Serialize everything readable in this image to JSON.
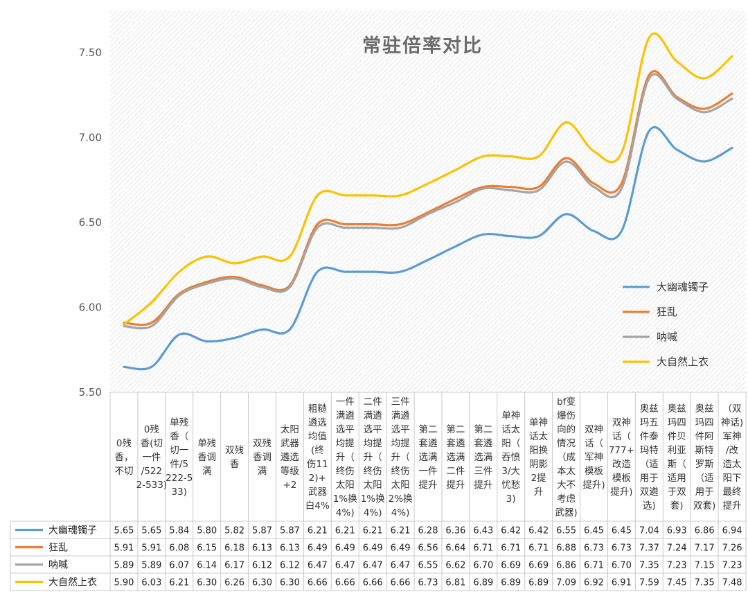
{
  "chart_data": {
    "type": "line",
    "title": "常驻倍率对比",
    "ylim": [
      5.5,
      7.75
    ],
    "yticks": [
      "5.50",
      "6.00",
      "6.50",
      "7.00",
      "7.50"
    ],
    "legend_position": "right",
    "categories": [
      "0残香，不切",
      "0残香(切一件/5222-533)",
      "单残香（切一件/5222-533)",
      "单残香调满",
      "双残香",
      "双残香调满",
      "太阳武器遴选等级+2",
      "粗糙遴选均值(终伤11 2)+武器白4%",
      "一件满遴选平均提升（终伤太阳1%换4%）",
      "二件满遴选平均提升（终伤太阳1%换4%）",
      "三件满遴选平均提升（终伤太阳2%换4%）",
      "第二套遴选满一件提升",
      "第二套遴选满二件提升",
      "第二套遴选满三件提升",
      "单神话太阳（吞愤3/大忧愁3）",
      "单神话太阳换阴影2提升",
      "bf变爆伤向的情况（成本太大不考虑武器）",
      "双神话（军神模板提升）",
      "双神话（777+改造模板提升）",
      "奥兹玛五件泰玛特（适用于双遴选）",
      "奥兹玛四件贝利亚斯（适用于双套）",
      "奥兹玛四件阿斯特罗斯（适用于双套）",
      "（双神话）军神/改造太阳下最终提升"
    ],
    "category_lines": [
      [
        "0残",
        "香，",
        "不切"
      ],
      [
        "0残",
        "香(切",
        "一件",
        "/522",
        "2-533)"
      ],
      [
        "单残",
        "香（",
        "切一",
        "件/5",
        "222-5",
        "33)"
      ],
      [
        "单残",
        "香调",
        "满"
      ],
      [
        "双残",
        "香"
      ],
      [
        "双残",
        "香调",
        "满"
      ],
      [
        "太阳",
        "武器",
        "遴选",
        "等级",
        "+2"
      ],
      [
        "粗糙",
        "遴选",
        "均值",
        "(终",
        "伤11",
        "2)+",
        "武器",
        "白4%"
      ],
      [
        "一件",
        "满遴",
        "选平",
        "均提",
        "升（",
        "终伤",
        "太阳",
        "1%换",
        "4%)"
      ],
      [
        "二件",
        "满遴",
        "选平",
        "均提",
        "升（",
        "终伤",
        "太阳",
        "1%换",
        "4%)"
      ],
      [
        "三件",
        "满遴",
        "选平",
        "均提",
        "升（",
        "终伤",
        "太阳",
        "2%换",
        "4%)"
      ],
      [
        "第二",
        "套遴",
        "选满",
        "一件",
        "提升"
      ],
      [
        "第二",
        "套遴",
        "选满",
        "二件",
        "提升"
      ],
      [
        "第二",
        "套遴",
        "选满",
        "三件",
        "提升"
      ],
      [
        "单神",
        "话太",
        "阳（",
        "吞愤",
        "3/大",
        "忧愁",
        "3)"
      ],
      [
        "单神",
        "话太",
        "阳换",
        "阴影",
        "2提",
        "升"
      ],
      [
        "bf变",
        "爆伤",
        "向的",
        "情况",
        "（成",
        "本太",
        "大不",
        "考虑",
        "武器)"
      ],
      [
        "双神",
        "话（",
        "军神",
        "模板",
        "提升)"
      ],
      [
        "双神",
        "话（",
        "777+",
        "改造",
        "模板",
        "提升)"
      ],
      [
        "奥兹",
        "玛五",
        "件泰",
        "玛特",
        "（适",
        "用于",
        "双遴",
        "选)"
      ],
      [
        "奥兹",
        "玛四",
        "件贝",
        "利亚",
        "斯（",
        "适用",
        "于双",
        "套)"
      ],
      [
        "奥兹",
        "玛四",
        "件阿",
        "斯特",
        "罗斯",
        "（适",
        "用于",
        "双套)"
      ],
      [
        "（双",
        "神话)",
        "军神",
        "/改",
        "造太",
        "阳下",
        "最终",
        "提升"
      ]
    ],
    "series": [
      {
        "name": "大幽魂镯子",
        "color": "#5b9bd5",
        "values": [
          5.65,
          5.65,
          5.84,
          5.8,
          5.82,
          5.87,
          5.87,
          6.21,
          6.21,
          6.21,
          6.21,
          6.28,
          6.36,
          6.43,
          6.42,
          6.42,
          6.55,
          6.45,
          6.45,
          7.04,
          6.93,
          6.86,
          6.94
        ]
      },
      {
        "name": "狂乱",
        "color": "#ed7d31",
        "values": [
          5.91,
          5.91,
          6.08,
          6.15,
          6.18,
          6.13,
          6.13,
          6.49,
          6.49,
          6.49,
          6.49,
          6.56,
          6.64,
          6.71,
          6.71,
          6.71,
          6.88,
          6.73,
          6.73,
          7.37,
          7.24,
          7.17,
          7.26
        ]
      },
      {
        "name": "呐喊",
        "color": "#a5a5a5",
        "values": [
          5.89,
          5.89,
          6.07,
          6.14,
          6.17,
          6.12,
          6.12,
          6.47,
          6.47,
          6.47,
          6.47,
          6.55,
          6.62,
          6.7,
          6.69,
          6.69,
          6.86,
          6.71,
          6.7,
          7.35,
          7.23,
          7.15,
          7.23
        ]
      },
      {
        "name": "大自然上衣",
        "color": "#ffc000",
        "values": [
          5.9,
          6.03,
          6.21,
          6.3,
          6.26,
          6.3,
          6.3,
          6.66,
          6.66,
          6.66,
          6.66,
          6.73,
          6.81,
          6.89,
          6.89,
          6.89,
          7.09,
          6.92,
          6.91,
          7.59,
          7.45,
          7.35,
          7.48
        ]
      }
    ]
  }
}
